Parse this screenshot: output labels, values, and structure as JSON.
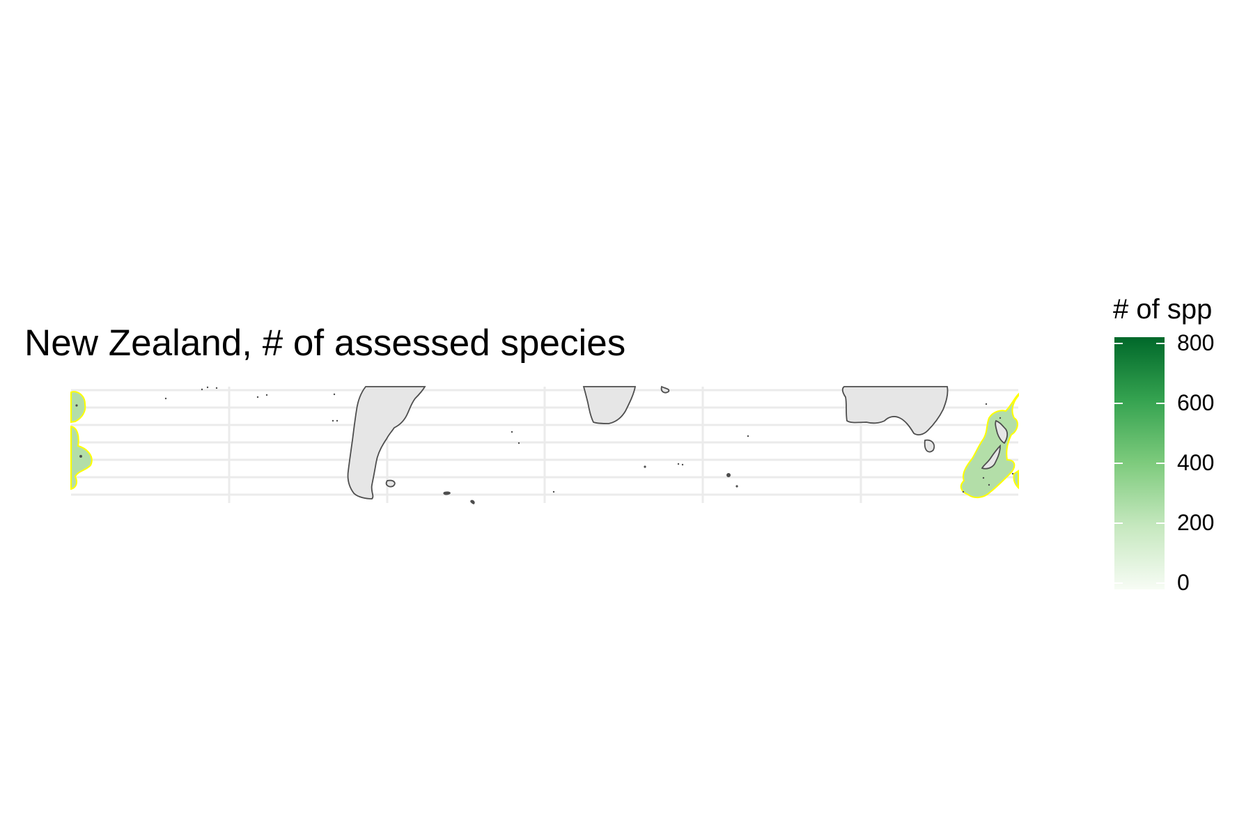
{
  "title": "New Zealand, # of assessed species",
  "legend": {
    "title": "# of spp",
    "ticks": [
      "800",
      "600",
      "400",
      "200",
      "0"
    ],
    "colors": {
      "high": "#00682a",
      "low": "#f7fcf5"
    }
  },
  "map": {
    "land_color": "#e6e6e6",
    "coast_color": "#4d4d4d",
    "region_outline_color": "#ffff00",
    "grid_color": "#ebebeb",
    "grid": true
  }
}
